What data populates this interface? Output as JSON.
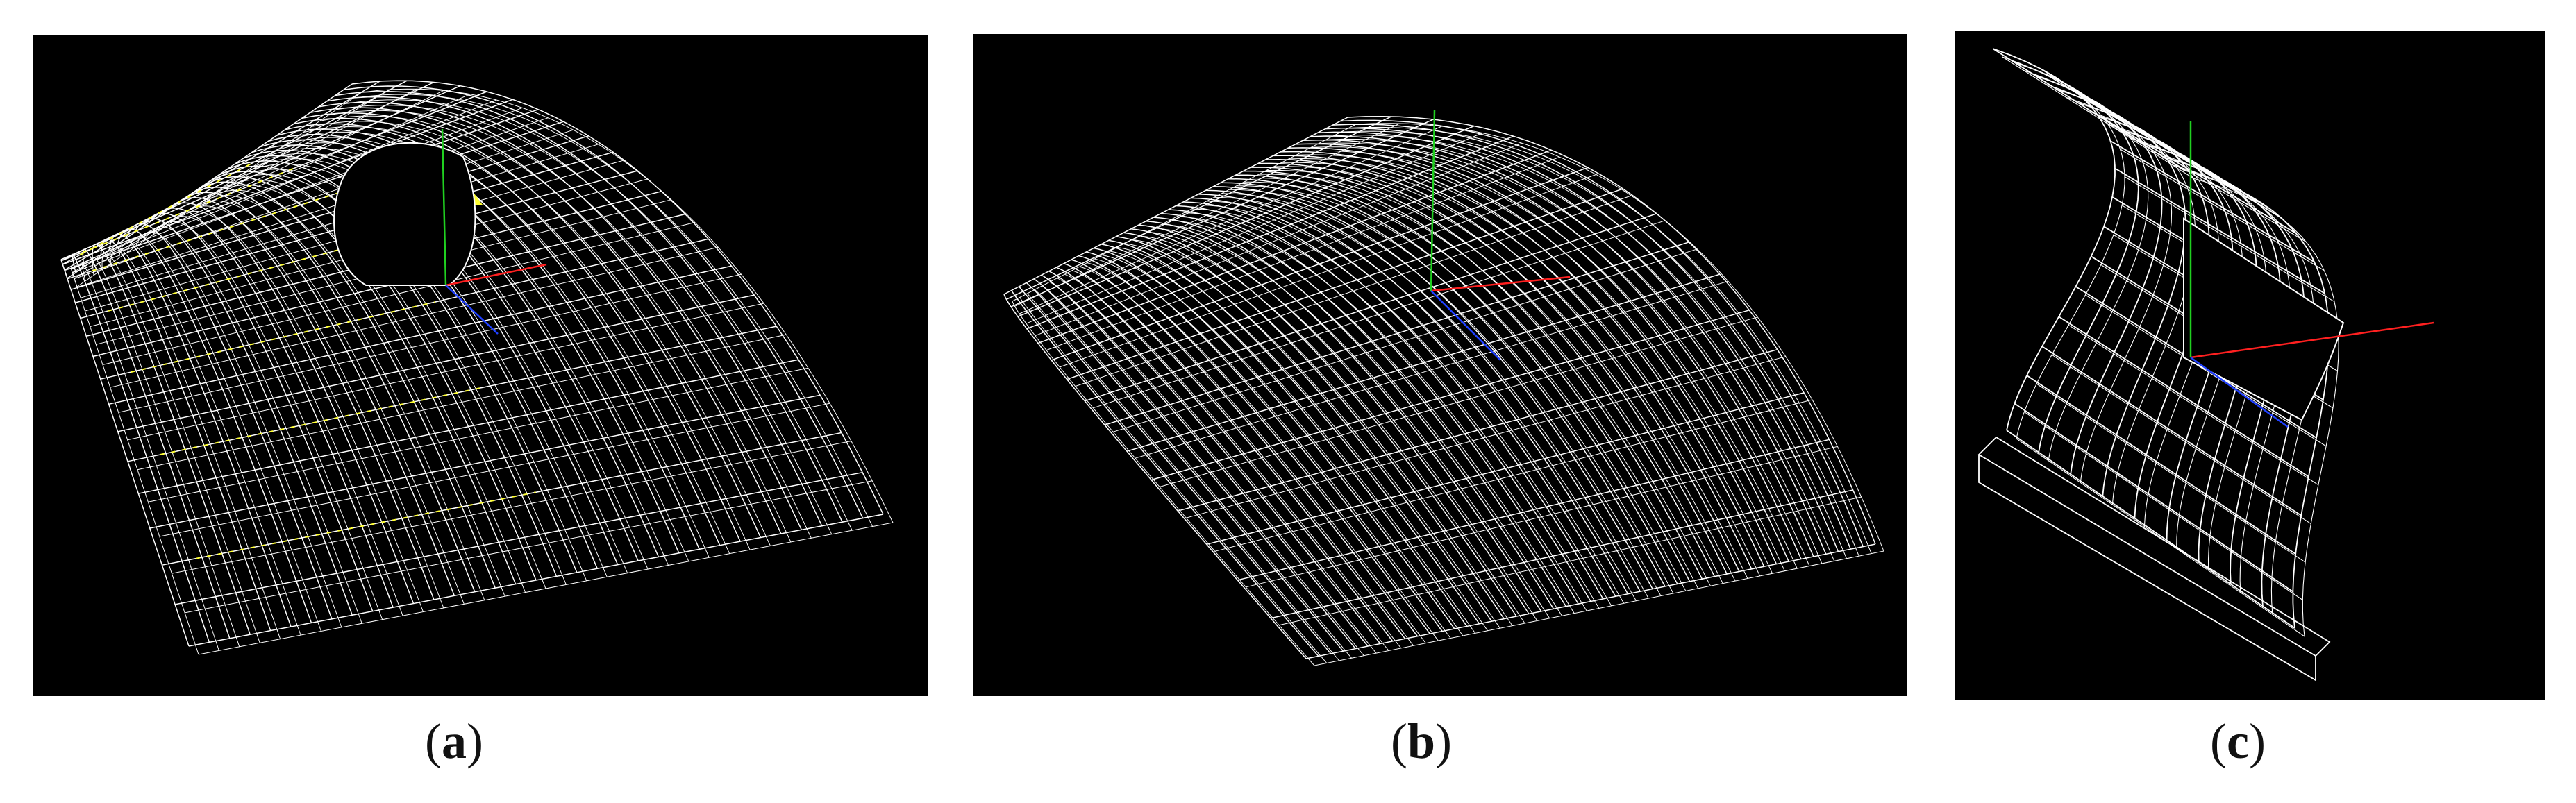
{
  "figure": {
    "panels": [
      {
        "id": "a",
        "caption_open": "(",
        "caption_letter": "a",
        "caption_close": ")"
      },
      {
        "id": "b",
        "caption_open": "(",
        "caption_letter": "b",
        "caption_close": ")"
      },
      {
        "id": "c",
        "caption_open": "(",
        "caption_letter": "c",
        "caption_close": ")"
      }
    ],
    "colors": {
      "background": "#000000",
      "wireframe": "#ffffff",
      "highlight": "#ffff33",
      "axis_x": "#ff2020",
      "axis_y": "#20d020",
      "axis_z": "#2040ff"
    }
  }
}
